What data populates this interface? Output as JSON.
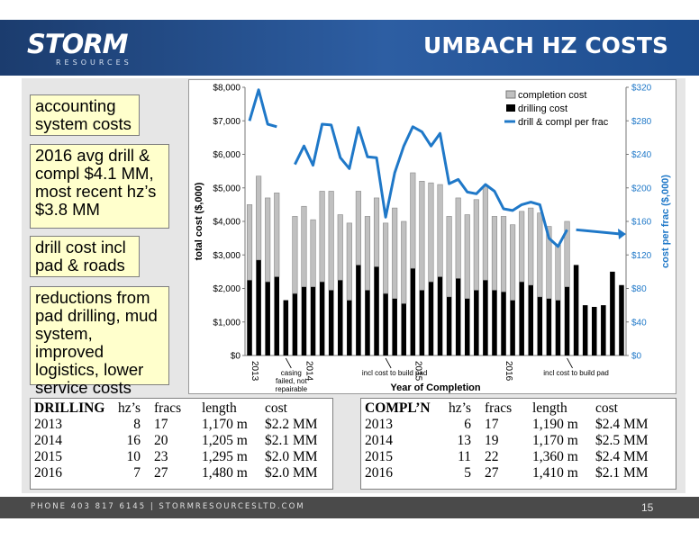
{
  "header": {
    "logo": "STORM",
    "logo_sub": "RESOURCES",
    "title": "UMBACH HZ COSTS"
  },
  "notes": [
    "accounting system costs",
    "2016 avg drill & compl $4.1 MM, most recent hz’s $3.8 MM",
    "drill cost incl pad & roads",
    "reductions from pad drilling, mud system, improved logistics, lower service costs"
  ],
  "chart_data": {
    "type": "bar",
    "xlabel": "Year of Completion",
    "ylabel": "total cost ($,000)",
    "y2label": "cost per frac ($,000)",
    "ylim": [
      0,
      8000
    ],
    "y2lim": [
      0,
      320
    ],
    "y_ticks": [
      "$0",
      "$1,000",
      "$2,000",
      "$3,000",
      "$4,000",
      "$5,000",
      "$6,000",
      "$7,000",
      "$8,000"
    ],
    "y2_ticks": [
      "$0",
      "$40",
      "$80",
      "$120",
      "$160",
      "$200",
      "$240",
      "$280",
      "$320"
    ],
    "x_year_labels": [
      "2013",
      "2014",
      "2015",
      "2016"
    ],
    "x_year_index": [
      0,
      6,
      18,
      28
    ],
    "annotations": [
      "casing failed, not repairable",
      "incl cost to build pad",
      "incl cost to build pad"
    ],
    "legend": [
      "completion cost",
      "drilling cost",
      "drill & compl per frac"
    ],
    "legend_position": "top-right",
    "series": [
      {
        "name": "drilling cost",
        "color": "#000000",
        "values": [
          2250,
          2850,
          2200,
          2350,
          1650,
          1850,
          2050,
          2050,
          2200,
          1950,
          2250,
          1650,
          2700,
          1950,
          2650,
          1850,
          1700,
          1550,
          2600,
          1950,
          2200,
          2350,
          1750,
          2300,
          1700,
          1950,
          2250,
          1950,
          1900,
          1650,
          2200,
          2100,
          1750,
          1700,
          1650,
          2050,
          2700,
          1500,
          1450,
          1500,
          2500,
          2100
        ]
      },
      {
        "name": "completion cost",
        "color": "#c0c0c0",
        "values": [
          2250,
          2500,
          2500,
          2500,
          0,
          2300,
          2400,
          2000,
          2700,
          2950,
          1950,
          2300,
          2200,
          2200,
          2050,
          2100,
          2700,
          2450,
          2850,
          3250,
          2950,
          2750,
          2400,
          2400,
          2500,
          2700,
          2800,
          2200,
          2250,
          2250,
          2100,
          2300,
          2500,
          2150,
          1650,
          1950,
          0,
          0,
          0,
          0,
          0,
          0
        ]
      },
      {
        "name": "drill & compl per frac",
        "color": "#1f78c8",
        "values": [
          280,
          317,
          276,
          273,
          null,
          228,
          250,
          227,
          276,
          275,
          236,
          223,
          272,
          237,
          236,
          165,
          218,
          250,
          273,
          267,
          250,
          265,
          205,
          210,
          195,
          193,
          204,
          196,
          175,
          173,
          180,
          183,
          180,
          140,
          130,
          150
        ]
      }
    ],
    "annotation_arrow": {
      "from": 150,
      "to": 145
    }
  },
  "drilling_table": {
    "headers": [
      "DRILLING",
      "hz’s",
      "fracs",
      "length",
      "cost"
    ],
    "rows": [
      [
        "2013",
        "8",
        "17",
        "1,170 m",
        "$2.2 MM"
      ],
      [
        "2014",
        "16",
        "20",
        "1,205 m",
        "$2.1 MM"
      ],
      [
        "2015",
        "10",
        "23",
        "1,295 m",
        "$2.0 MM"
      ],
      [
        "2016",
        "7",
        "27",
        "1,480 m",
        "$2.0 MM"
      ]
    ]
  },
  "completion_table": {
    "headers": [
      "COMPL’N",
      "hz’s",
      "fracs",
      "length",
      "cost"
    ],
    "rows": [
      [
        "2013",
        "6",
        "17",
        "1,190 m",
        "$2.4 MM"
      ],
      [
        "2014",
        "13",
        "19",
        "1,170 m",
        "$2.5 MM"
      ],
      [
        "2015",
        "11",
        "22",
        "1,360 m",
        "$2.4 MM"
      ],
      [
        "2016",
        "5",
        "27",
        "1,410 m",
        "$2.1 MM"
      ]
    ]
  },
  "footer": {
    "text": "PHONE 403 817 6145  |  STORMRESOURCESLTD.COM",
    "page": "15"
  }
}
